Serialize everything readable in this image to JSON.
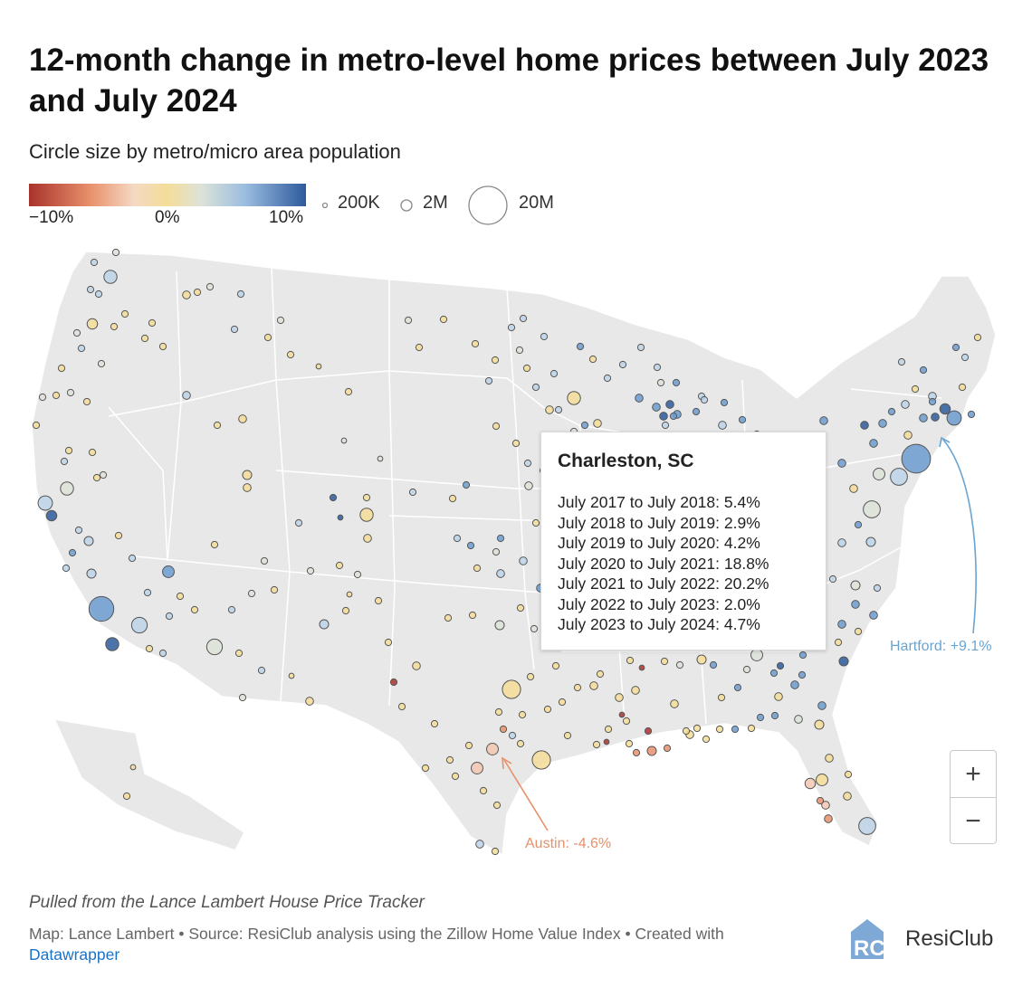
{
  "header": {
    "title": "12-month change in metro-level home prices between July 2023 and July 2024",
    "subtitle": "Circle size by metro/micro area population"
  },
  "color_legend": {
    "min_label": "−10%",
    "mid_label": "0%",
    "max_label": "10%",
    "low_color": "#a9332b",
    "mid_color": "#f4dd98",
    "high_color": "#2e5a9c"
  },
  "size_legend": {
    "small": "200K",
    "medium": "2M",
    "large": "20M"
  },
  "tooltip": {
    "title": "Charleston, SC",
    "rows": [
      "July 2017 to July 2018: 5.4%",
      "July 2018 to July 2019: 2.9%",
      "July 2019 to July 2020: 4.2%",
      "July 2020 to July 2021: 18.8%",
      "July 2021 to July 2022: 20.2%",
      "July 2022 to July 2023: 2.0%",
      "July 2023 to July 2024: 4.7%"
    ]
  },
  "annotations": {
    "hartford": {
      "text": "Hartford: +9.1%",
      "value": 9.1
    },
    "austin": {
      "text": "Austin: -4.6%",
      "value": -4.6
    }
  },
  "zoom": {
    "plus": "+",
    "minus": "−"
  },
  "footer": {
    "note": "Pulled from the Lance Lambert House Price Tracker",
    "source": "Map: Lance Lambert • Source: ResiClub analysis using the Zillow Home Value Index • Created with",
    "link": "Datawrapper",
    "brand_mark": "RC",
    "brand": "ResiClub"
  }
}
